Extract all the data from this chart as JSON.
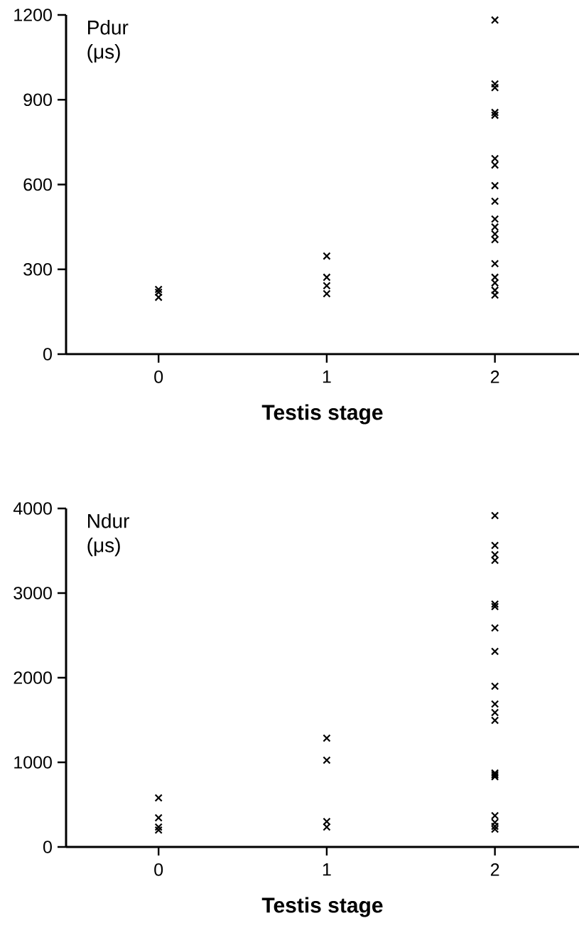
{
  "chart_data": [
    {
      "type": "scatter",
      "ylabel": "Pdur (μs)",
      "xlabel": "Testis stage",
      "marker": "cross",
      "color": "#000000",
      "x": [
        0,
        0,
        0,
        1,
        1,
        1,
        1,
        2,
        2,
        2,
        2,
        2,
        2,
        2,
        2,
        2,
        2,
        2,
        2,
        2,
        2,
        2,
        2,
        2,
        2
      ],
      "values": [
        229,
        219,
        201,
        347,
        272,
        242,
        214,
        1182,
        956,
        943,
        855,
        845,
        692,
        669,
        596,
        541,
        478,
        450,
        425,
        405,
        320,
        272,
        252,
        226,
        209
      ],
      "xlim": [
        -0.55,
        2.5
      ],
      "xticks": [
        0,
        1,
        2
      ],
      "ylim": [
        0,
        1200
      ],
      "yticks": [
        0,
        300,
        600,
        900,
        1200
      ]
    },
    {
      "type": "scatter",
      "ylabel": "Ndur (μs)",
      "xlabel": "Testis stage",
      "marker": "cross",
      "color": "#000000",
      "x": [
        0,
        0,
        0,
        0,
        1,
        1,
        1,
        1,
        2,
        2,
        2,
        2,
        2,
        2,
        2,
        2,
        2,
        2,
        2,
        2,
        2,
        2,
        2,
        2,
        2,
        2,
        2
      ],
      "values": [
        580,
        345,
        235,
        200,
        1286,
        1025,
        300,
        235,
        3916,
        3563,
        3454,
        3387,
        2870,
        2840,
        2588,
        2311,
        1899,
        1689,
        1588,
        1496,
        874,
        852,
        830,
        370,
        290,
        244,
        210
      ],
      "xlim": [
        -0.55,
        2.5
      ],
      "xticks": [
        0,
        1,
        2
      ],
      "ylim": [
        0,
        4000
      ],
      "yticks": [
        0,
        1000,
        2000,
        3000,
        4000
      ]
    }
  ]
}
